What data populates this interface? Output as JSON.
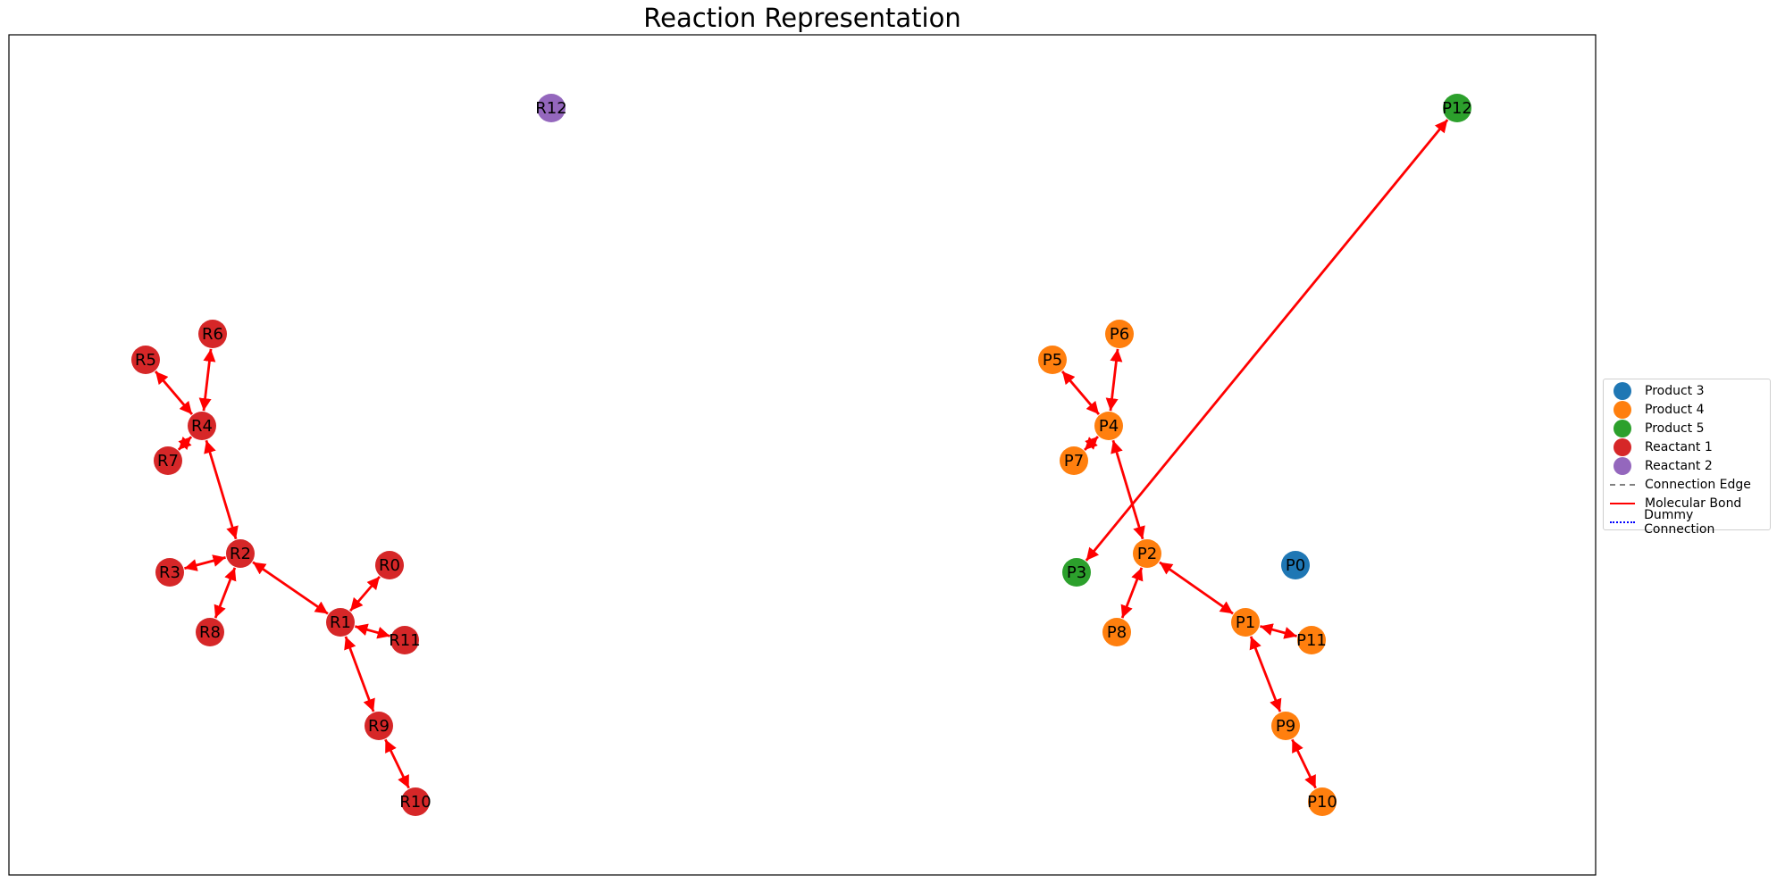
{
  "title": "Reaction Representation",
  "colors": {
    "product_3": "#1f77b4",
    "product_4": "#ff7f0e",
    "product_5": "#2ca02c",
    "reactant_1": "#d62728",
    "reactant_2": "#9467bd",
    "bond": "#ff0000",
    "connection": "#808080",
    "dummy": "#0000ff"
  },
  "legend": [
    {
      "label": "Product 3",
      "kind": "dot",
      "color": "#1f77b4"
    },
    {
      "label": "Product 4",
      "kind": "dot",
      "color": "#ff7f0e"
    },
    {
      "label": "Product 5",
      "kind": "dot",
      "color": "#2ca02c"
    },
    {
      "label": "Reactant 1",
      "kind": "dot",
      "color": "#d62728"
    },
    {
      "label": "Reactant 2",
      "kind": "dot",
      "color": "#9467bd"
    },
    {
      "label": "Connection Edge",
      "kind": "dashed",
      "color": "#808080"
    },
    {
      "label": "Molecular Bond",
      "kind": "solid",
      "color": "#ff0000"
    },
    {
      "label": "Dummy Connection",
      "kind": "dotted",
      "color": "#0000ff"
    }
  ],
  "nodes": [
    {
      "id": "R0",
      "group": "reactant_1"
    },
    {
      "id": "R1",
      "group": "reactant_1"
    },
    {
      "id": "R2",
      "group": "reactant_1"
    },
    {
      "id": "R3",
      "group": "reactant_1"
    },
    {
      "id": "R4",
      "group": "reactant_1"
    },
    {
      "id": "R5",
      "group": "reactant_1"
    },
    {
      "id": "R6",
      "group": "reactant_1"
    },
    {
      "id": "R7",
      "group": "reactant_1"
    },
    {
      "id": "R8",
      "group": "reactant_1"
    },
    {
      "id": "R9",
      "group": "reactant_1"
    },
    {
      "id": "R10",
      "group": "reactant_1"
    },
    {
      "id": "R11",
      "group": "reactant_1"
    },
    {
      "id": "R12",
      "group": "reactant_2"
    },
    {
      "id": "P0",
      "group": "product_3"
    },
    {
      "id": "P1",
      "group": "product_4"
    },
    {
      "id": "P2",
      "group": "product_4"
    },
    {
      "id": "P3",
      "group": "product_5"
    },
    {
      "id": "P4",
      "group": "product_4"
    },
    {
      "id": "P5",
      "group": "product_4"
    },
    {
      "id": "P6",
      "group": "product_4"
    },
    {
      "id": "P7",
      "group": "product_4"
    },
    {
      "id": "P8",
      "group": "product_4"
    },
    {
      "id": "P9",
      "group": "product_4"
    },
    {
      "id": "P10",
      "group": "product_4"
    },
    {
      "id": "P11",
      "group": "product_4"
    },
    {
      "id": "P12",
      "group": "product_5"
    }
  ],
  "edges": [
    {
      "source": "R0",
      "target": "R1",
      "type": "bond"
    },
    {
      "source": "R1",
      "target": "R2",
      "type": "bond"
    },
    {
      "source": "R1",
      "target": "R9",
      "type": "bond"
    },
    {
      "source": "R1",
      "target": "R11",
      "type": "bond"
    },
    {
      "source": "R2",
      "target": "R3",
      "type": "bond"
    },
    {
      "source": "R2",
      "target": "R4",
      "type": "bond"
    },
    {
      "source": "R2",
      "target": "R8",
      "type": "bond"
    },
    {
      "source": "R4",
      "target": "R5",
      "type": "bond"
    },
    {
      "source": "R4",
      "target": "R6",
      "type": "bond"
    },
    {
      "source": "R4",
      "target": "R7",
      "type": "bond"
    },
    {
      "source": "R9",
      "target": "R10",
      "type": "bond"
    },
    {
      "source": "P1",
      "target": "P2",
      "type": "bond"
    },
    {
      "source": "P1",
      "target": "P9",
      "type": "bond"
    },
    {
      "source": "P1",
      "target": "P11",
      "type": "bond"
    },
    {
      "source": "P2",
      "target": "P4",
      "type": "bond"
    },
    {
      "source": "P2",
      "target": "P8",
      "type": "bond"
    },
    {
      "source": "P4",
      "target": "P5",
      "type": "bond"
    },
    {
      "source": "P4",
      "target": "P6",
      "type": "bond"
    },
    {
      "source": "P4",
      "target": "P7",
      "type": "bond"
    },
    {
      "source": "P9",
      "target": "P10",
      "type": "bond"
    },
    {
      "source": "P3",
      "target": "P12",
      "type": "bond"
    }
  ]
}
